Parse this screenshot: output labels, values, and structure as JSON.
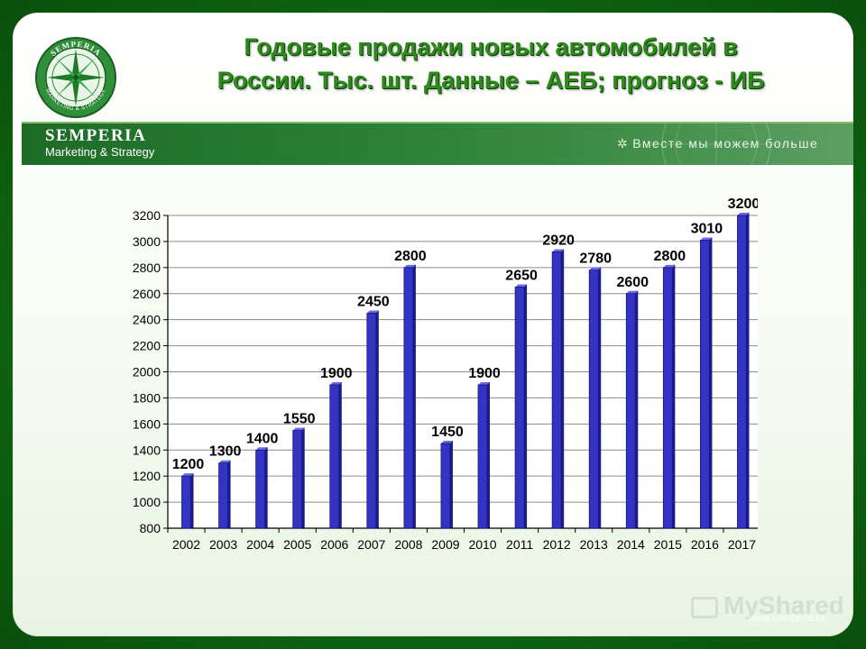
{
  "title": {
    "line1": "Годовые продажи новых автомобилей в",
    "line2": "России.  Тыс. шт. Данные – АЕБ; прогноз - ИБ"
  },
  "banner": {
    "brand": "SEMPERIA",
    "subtitle": "Marketing & Strategy",
    "tagline": "Вместе мы можем больше"
  },
  "logo": {
    "icon": "compass-star-icon",
    "ring_top": "SEMPERIA",
    "ring_bottom": "MARKETING & STRATEGY"
  },
  "footer": {
    "url": "www.semperia.ru",
    "watermark": "MyShared"
  },
  "colors": {
    "title": "#2e8a1a",
    "bar": "#3434c4",
    "bar_dark": "#1c1c8c",
    "frame": "#0f6a12"
  },
  "chart_data": {
    "type": "bar",
    "title": "Годовые продажи новых автомобилей в России.  Тыс. шт. Данные – АЕБ; прогноз - ИБ",
    "xlabel": "",
    "ylabel": "",
    "categories": [
      "2002",
      "2003",
      "2004",
      "2005",
      "2006",
      "2007",
      "2008",
      "2009",
      "2010",
      "2011",
      "2012",
      "2013",
      "2014",
      "2015",
      "2016",
      "2017"
    ],
    "values": [
      1200,
      1300,
      1400,
      1550,
      1900,
      2450,
      2800,
      1450,
      1900,
      2650,
      2920,
      2780,
      2600,
      2800,
      3010,
      3200
    ],
    "ylim": [
      800,
      3200
    ],
    "yticks": [
      800,
      1000,
      1200,
      1400,
      1600,
      1800,
      2000,
      2200,
      2400,
      2600,
      2800,
      3000,
      3200
    ],
    "grid": true,
    "legend": "none"
  }
}
